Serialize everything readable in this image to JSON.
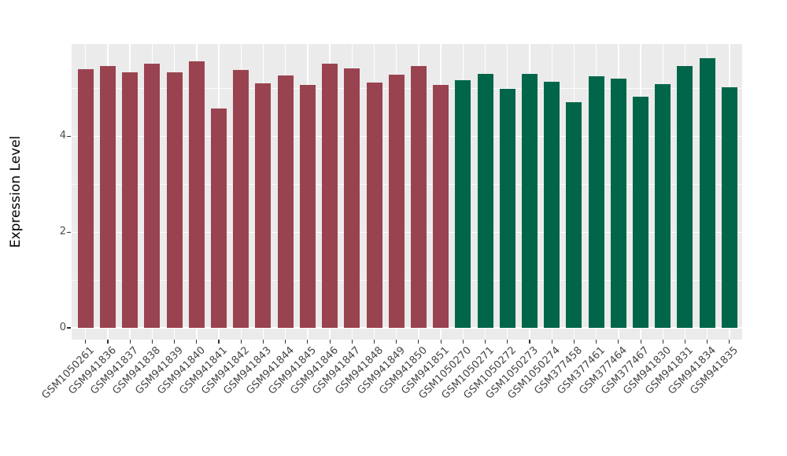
{
  "chart_data": {
    "type": "bar",
    "title": "",
    "xlabel": "",
    "ylabel": "Expression Level",
    "ylim": [
      0,
      5.93
    ],
    "yticks": [
      0,
      2,
      4
    ],
    "y_minor_gridlines": [
      1,
      3,
      5
    ],
    "grid": "on",
    "legend_position": "none",
    "panel_bg": "#EBEBEB",
    "grid_color": "#FFFFFF",
    "tick_mark_color": "#333333",
    "axis_text_color": "#4d4d4d",
    "group_colors": {
      "group1": "#9A4350",
      "group2": "#016649"
    },
    "bars": [
      {
        "label": "GSM1050261",
        "value": 5.41,
        "group": "group1"
      },
      {
        "label": "GSM941836",
        "value": 5.46,
        "group": "group1"
      },
      {
        "label": "GSM941837",
        "value": 5.33,
        "group": "group1"
      },
      {
        "label": "GSM941838",
        "value": 5.52,
        "group": "group1"
      },
      {
        "label": "GSM941839",
        "value": 5.33,
        "group": "group1"
      },
      {
        "label": "GSM941840",
        "value": 5.56,
        "group": "group1"
      },
      {
        "label": "GSM941841",
        "value": 4.58,
        "group": "group1"
      },
      {
        "label": "GSM941842",
        "value": 5.38,
        "group": "group1"
      },
      {
        "label": "GSM941843",
        "value": 5.1,
        "group": "group1"
      },
      {
        "label": "GSM941844",
        "value": 5.27,
        "group": "group1"
      },
      {
        "label": "GSM941845",
        "value": 5.08,
        "group": "group1"
      },
      {
        "label": "GSM941846",
        "value": 5.52,
        "group": "group1"
      },
      {
        "label": "GSM941847",
        "value": 5.42,
        "group": "group1"
      },
      {
        "label": "GSM941848",
        "value": 5.13,
        "group": "group1"
      },
      {
        "label": "GSM941849",
        "value": 5.29,
        "group": "group1"
      },
      {
        "label": "GSM941850",
        "value": 5.47,
        "group": "group1"
      },
      {
        "label": "GSM941851",
        "value": 5.08,
        "group": "group1"
      },
      {
        "label": "GSM1050270",
        "value": 5.17,
        "group": "group2"
      },
      {
        "label": "GSM1050271",
        "value": 5.31,
        "group": "group2"
      },
      {
        "label": "GSM1050272",
        "value": 5.0,
        "group": "group2"
      },
      {
        "label": "GSM1050273",
        "value": 5.3,
        "group": "group2"
      },
      {
        "label": "GSM1050274",
        "value": 5.14,
        "group": "group2"
      },
      {
        "label": "GSM377458",
        "value": 4.71,
        "group": "group2"
      },
      {
        "label": "GSM377461",
        "value": 5.25,
        "group": "group2"
      },
      {
        "label": "GSM377464",
        "value": 5.21,
        "group": "group2"
      },
      {
        "label": "GSM377467",
        "value": 4.82,
        "group": "group2"
      },
      {
        "label": "GSM941830",
        "value": 5.09,
        "group": "group2"
      },
      {
        "label": "GSM941831",
        "value": 5.47,
        "group": "group2"
      },
      {
        "label": "GSM941834",
        "value": 5.63,
        "group": "group2"
      },
      {
        "label": "GSM941835",
        "value": 5.02,
        "group": "group2"
      }
    ]
  }
}
